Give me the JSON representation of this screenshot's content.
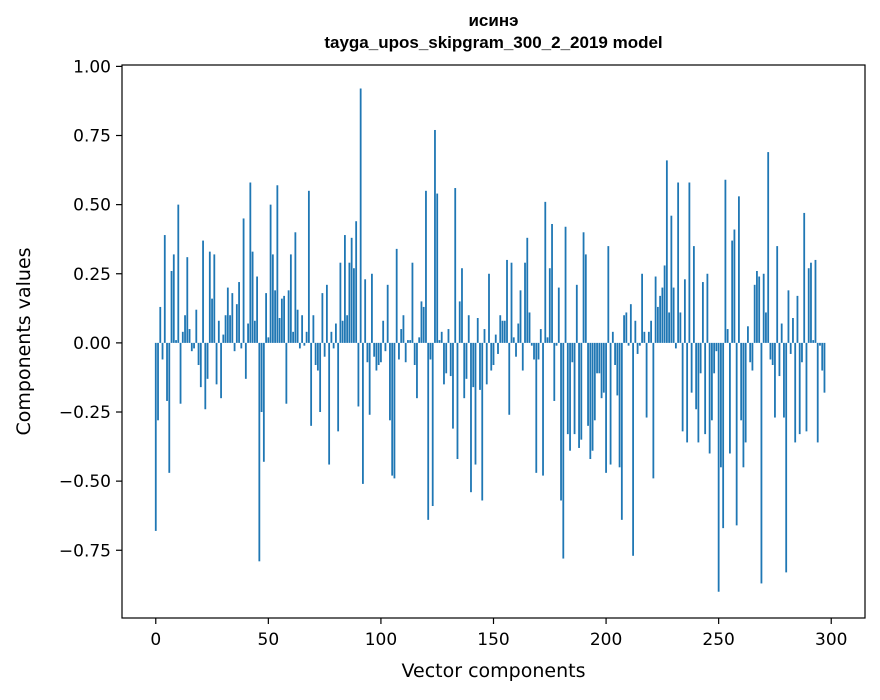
{
  "chart_data": {
    "type": "bar",
    "title_lines": [
      "исинэ",
      "tayga_upos_skipgram_300_2_2019 model"
    ],
    "xlabel": "Vector components",
    "ylabel": "Components values",
    "xlim": [
      -15,
      315
    ],
    "ylim": [
      -0.995,
      1.005
    ],
    "xticks": [
      0,
      50,
      100,
      150,
      200,
      250,
      300
    ],
    "xtick_labels": [
      "0",
      "50",
      "100",
      "150",
      "200",
      "250",
      "300"
    ],
    "yticks": [
      -0.75,
      -0.5,
      -0.25,
      0.0,
      0.25,
      0.5,
      0.75,
      1.0
    ],
    "ytick_labels": [
      "−0.75",
      "−0.50",
      "−0.25",
      "0.00",
      "0.25",
      "0.50",
      "0.75",
      "1.00"
    ],
    "grid": false,
    "color": "#1f77b4",
    "values": [
      -0.68,
      -0.28,
      0.13,
      -0.06,
      0.39,
      -0.21,
      -0.47,
      0.26,
      0.32,
      0.01,
      0.5,
      -0.22,
      0.04,
      0.1,
      0.31,
      0.05,
      -0.03,
      -0.02,
      0.12,
      -0.08,
      -0.16,
      0.37,
      -0.24,
      -0.13,
      0.33,
      0.16,
      0.32,
      -0.15,
      0.08,
      -0.2,
      0.03,
      0.1,
      0.2,
      0.1,
      0.18,
      -0.03,
      0.14,
      0.22,
      -0.02,
      0.45,
      -0.13,
      0.07,
      0.58,
      0.33,
      0.08,
      0.24,
      -0.79,
      -0.25,
      -0.43,
      0.18,
      0.02,
      0.5,
      0.32,
      0.19,
      0.57,
      0.09,
      0.16,
      0.17,
      -0.22,
      0.19,
      0.32,
      0.04,
      0.4,
      0.12,
      -0.02,
      0.1,
      -0.01,
      0.04,
      0.55,
      -0.3,
      0.1,
      -0.08,
      -0.1,
      -0.25,
      0.18,
      -0.05,
      0.21,
      -0.44,
      0.04,
      -0.02,
      0.07,
      -0.32,
      0.29,
      0.08,
      0.39,
      0.1,
      0.29,
      0.38,
      0.27,
      0.44,
      -0.23,
      0.92,
      -0.51,
      0.23,
      -0.07,
      -0.26,
      0.25,
      -0.05,
      -0.1,
      -0.08,
      -0.07,
      0.08,
      -0.03,
      0.21,
      -0.28,
      -0.48,
      -0.49,
      0.34,
      -0.06,
      0.05,
      0.1,
      -0.07,
      0.01,
      0.01,
      0.29,
      -0.08,
      -0.2,
      0.02,
      0.15,
      0.13,
      0.55,
      -0.64,
      -0.06,
      -0.59,
      0.77,
      0.54,
      0.01,
      0.04,
      -0.15,
      -0.11,
      0.05,
      -0.12,
      -0.31,
      0.56,
      -0.42,
      0.15,
      0.27,
      -0.2,
      -0.13,
      0.1,
      -0.54,
      -0.16,
      -0.44,
      0.09,
      -0.17,
      -0.57,
      0.05,
      -0.15,
      0.25,
      -0.1,
      -0.08,
      0.03,
      -0.04,
      0.1,
      0.08,
      0.08,
      0.3,
      -0.26,
      0.29,
      0.02,
      -0.05,
      0.07,
      0.19,
      -0.1,
      0.29,
      0.38,
      0.11,
      -0.01,
      -0.06,
      -0.47,
      -0.06,
      0.05,
      -0.48,
      0.51,
      0.02,
      0.27,
      0.43,
      -0.21,
      -0.01,
      0.2,
      -0.57,
      -0.78,
      0.42,
      -0.33,
      -0.39,
      -0.07,
      -0.33,
      0.21,
      -0.38,
      -0.35,
      0.4,
      0.32,
      -0.3,
      -0.42,
      -0.39,
      -0.28,
      -0.11,
      -0.11,
      -0.2,
      -0.18,
      -0.47,
      0.35,
      -0.44,
      0.04,
      -0.08,
      -0.19,
      -0.45,
      -0.64,
      0.1,
      0.11,
      -0.01,
      0.14,
      -0.77,
      0.08,
      -0.04,
      -0.01,
      0.25,
      0.04,
      -0.27,
      0.04,
      0.08,
      -0.49,
      0.24,
      0.13,
      0.17,
      0.2,
      0.28,
      0.66,
      0.11,
      0.46,
      0.2,
      -0.02,
      0.58,
      0.11,
      -0.32,
      0.23,
      -0.36,
      0.58,
      -0.18,
      0.35,
      -0.24,
      -0.36,
      -0.11,
      0.22,
      -0.33,
      0.25,
      -0.4,
      -0.28,
      -0.11,
      -0.03,
      -0.9,
      -0.45,
      -0.67,
      0.59,
      0.05,
      -0.4,
      0.37,
      0.41,
      -0.66,
      0.53,
      -0.28,
      -0.45,
      -0.36,
      0.06,
      -0.07,
      -0.1,
      0.21,
      0.26,
      0.24,
      -0.87,
      0.25,
      0.11,
      0.69,
      -0.06,
      -0.08,
      -0.27,
      0.35,
      -0.12,
      0.07,
      -0.27,
      -0.83,
      0.19,
      -0.04,
      0.09,
      -0.36,
      0.17,
      -0.33,
      -0.07,
      0.47,
      -0.32,
      0.27,
      0.29,
      0.01,
      0.3,
      -0.36,
      -0.01,
      -0.1,
      -0.18
    ]
  }
}
